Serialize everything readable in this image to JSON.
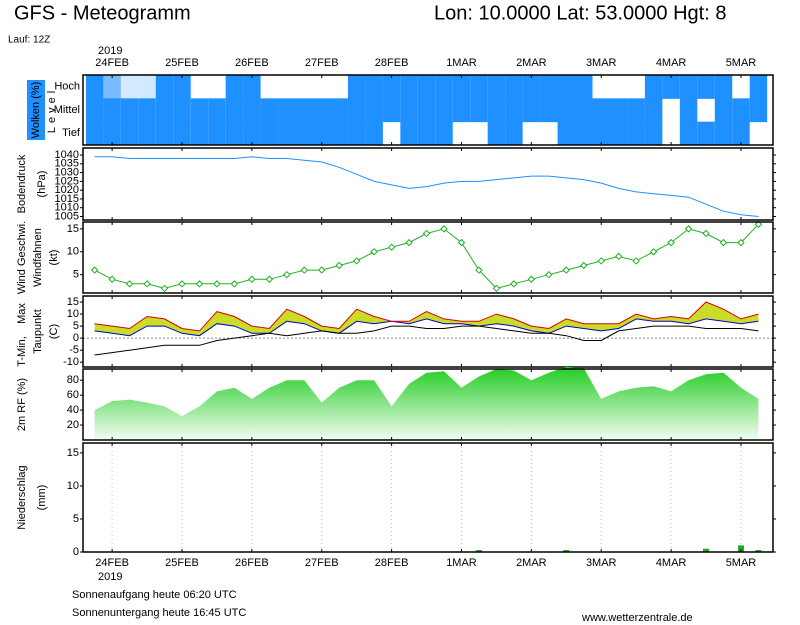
{
  "header": {
    "title": "GFS - Meteogramm",
    "location": "Lon: 10.0000 Lat: 53.0000 Hgt: 8",
    "run": "Lauf: 12Z"
  },
  "time_axis": {
    "year": "2019",
    "xlim": [
      -10,
      227
    ],
    "xticks": [
      {
        "value": 0,
        "label": "24FEB"
      },
      {
        "value": 24,
        "label": "25FEB"
      },
      {
        "value": 48,
        "label": "26FEB"
      },
      {
        "value": 72,
        "label": "27FEB"
      },
      {
        "value": 96,
        "label": "28FEB"
      },
      {
        "value": 120,
        "label": "1MAR"
      },
      {
        "value": 144,
        "label": "2MAR"
      },
      {
        "value": 168,
        "label": "3MAR"
      },
      {
        "value": 192,
        "label": "4MAR"
      },
      {
        "value": 216,
        "label": "5MAR"
      }
    ],
    "x": [
      -6,
      0,
      6,
      12,
      18,
      24,
      30,
      36,
      42,
      48,
      54,
      60,
      66,
      72,
      78,
      84,
      90,
      96,
      102,
      108,
      114,
      120,
      126,
      132,
      138,
      144,
      150,
      156,
      162,
      168,
      174,
      180,
      186,
      192,
      198,
      204,
      210,
      216,
      222
    ]
  },
  "chart_data": [
    {
      "type": "cloud",
      "ylabel": "Wolken (%)",
      "level_label": "Level",
      "color": "#1e90ff",
      "series": [
        {
          "name": "Hoch",
          "values": [
            100,
            60,
            20,
            20,
            100,
            100,
            0,
            0,
            100,
            100,
            0,
            0,
            0,
            0,
            0,
            100,
            100,
            100,
            100,
            100,
            100,
            100,
            100,
            100,
            100,
            100,
            100,
            100,
            100,
            0,
            0,
            0,
            100,
            100,
            100,
            100,
            100,
            0,
            100
          ]
        },
        {
          "name": "Mittel",
          "values": [
            100,
            100,
            100,
            100,
            100,
            100,
            100,
            100,
            100,
            100,
            100,
            100,
            100,
            100,
            100,
            100,
            100,
            100,
            100,
            100,
            100,
            100,
            100,
            100,
            100,
            100,
            100,
            100,
            100,
            100,
            100,
            100,
            100,
            0,
            100,
            0,
            100,
            100,
            100
          ]
        },
        {
          "name": "Tief",
          "values": [
            100,
            100,
            100,
            100,
            100,
            100,
            100,
            100,
            100,
            100,
            100,
            100,
            100,
            100,
            100,
            100,
            100,
            0,
            100,
            100,
            100,
            0,
            0,
            100,
            100,
            0,
            0,
            100,
            100,
            100,
            100,
            100,
            100,
            0,
            100,
            100,
            100,
            100,
            0
          ]
        }
      ]
    },
    {
      "type": "line",
      "ylabel": [
        "Bodendruck",
        "(hPa)"
      ],
      "color": "#1e90ff",
      "ylim": [
        1003,
        1044
      ],
      "yticks": [
        1005,
        1010,
        1015,
        1020,
        1025,
        1030,
        1035,
        1040
      ],
      "values": [
        1039,
        1039,
        1038,
        1038,
        1038,
        1038,
        1038,
        1038,
        1038,
        1039,
        1038,
        1038,
        1037,
        1036,
        1033,
        1029,
        1025,
        1023,
        1021,
        1022,
        1024,
        1025,
        1025,
        1026,
        1027,
        1028,
        1028,
        1027,
        1026,
        1024,
        1021,
        1019,
        1018,
        1017,
        1016,
        1012,
        1008,
        1006,
        1005
      ]
    },
    {
      "type": "wind",
      "ylabel": [
        "Wind Geschwi.",
        "Windfahnen",
        "(kt)"
      ],
      "color": "#22b022",
      "ylim": [
        1,
        16.5
      ],
      "yticks": [
        5,
        10,
        15
      ],
      "values": [
        6,
        4,
        3,
        3,
        2,
        3,
        3,
        3,
        3,
        4,
        4,
        5,
        6,
        6,
        7,
        8,
        10,
        11,
        12,
        14,
        15,
        12,
        6,
        2,
        3,
        4,
        5,
        6,
        7,
        8,
        9,
        8,
        10,
        12,
        15,
        14,
        12,
        12,
        16
      ]
    },
    {
      "type": "range",
      "ylabel": "(C)",
      "ylim": [
        -12,
        17.5
      ],
      "yticks": [
        -10,
        -5,
        0,
        5,
        10,
        15
      ],
      "band_color": "#c8dc28",
      "series": [
        {
          "name": "T-Min,",
          "color": "#0000cc",
          "values": [
            3,
            2,
            1,
            5,
            5,
            2,
            1,
            6,
            5,
            2,
            2,
            7,
            6,
            3,
            2,
            7,
            6,
            7,
            6,
            8,
            6,
            6,
            5,
            6,
            5,
            3,
            2,
            5,
            4,
            3,
            4,
            8,
            7,
            7,
            6,
            8,
            7,
            6,
            7
          ]
        },
        {
          "name": "Max",
          "color": "#dd0000",
          "values": [
            6,
            5,
            4,
            9,
            8,
            4,
            3,
            11,
            9,
            5,
            4,
            12,
            9,
            5,
            4,
            12,
            9,
            7,
            7,
            11,
            8,
            7,
            7,
            10,
            8,
            5,
            4,
            8,
            6,
            6,
            6,
            10,
            8,
            9,
            8,
            15,
            12,
            8,
            10
          ]
        },
        {
          "name": "Taupunkt",
          "color": "#000000",
          "values": [
            -7,
            -6,
            -5,
            -4,
            -3,
            -3,
            -3,
            -1,
            0,
            1,
            2,
            1,
            2,
            3,
            2,
            2,
            3,
            5,
            5,
            4,
            4,
            5,
            5,
            4,
            3,
            2,
            2,
            1,
            -1,
            -1,
            3,
            4,
            5,
            5,
            5,
            4,
            4,
            4,
            3
          ]
        }
      ]
    },
    {
      "type": "area",
      "ylabel": "2m RF (%)",
      "color": "#22cc22",
      "ylim": [
        0,
        95
      ],
      "yticks": [
        20,
        40,
        60,
        80
      ],
      "values": [
        40,
        52,
        54,
        50,
        45,
        32,
        45,
        65,
        70,
        55,
        70,
        80,
        80,
        50,
        70,
        80,
        80,
        45,
        75,
        90,
        92,
        70,
        85,
        95,
        93,
        80,
        90,
        98,
        96,
        55,
        65,
        70,
        72,
        65,
        80,
        88,
        90,
        70,
        55
      ]
    },
    {
      "type": "bar",
      "ylabel": [
        "Niederschlag",
        "(mm)"
      ],
      "color": "#22aa22",
      "ylim": [
        0,
        16.5
      ],
      "yticks": [
        0,
        5,
        10,
        15
      ],
      "values": [
        0,
        0,
        0,
        0,
        0,
        0,
        0,
        0,
        0,
        0,
        0,
        0,
        0,
        0,
        0,
        0,
        0,
        0,
        0,
        0,
        0,
        0,
        0.3,
        0,
        0,
        0,
        0,
        0.3,
        0,
        0,
        0,
        0,
        0,
        0,
        0,
        0.5,
        0,
        1,
        0.3
      ]
    }
  ],
  "footer": {
    "sunrise": "Sonnenaufgang heute 06:20 UTC",
    "sunset": "Sonnenuntergang heute 16:45 UTC",
    "source": "www.wetterzentrale.de"
  }
}
